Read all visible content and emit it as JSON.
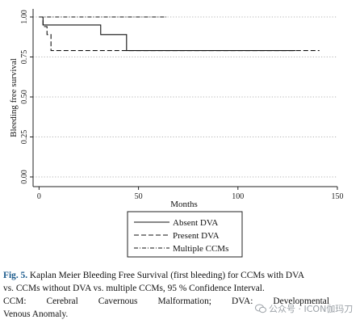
{
  "chart_data": {
    "type": "line",
    "xlabel": "Months",
    "ylabel": "Bleeding free survival",
    "xlim": [
      -3,
      150
    ],
    "ylim": [
      0,
      1.0
    ],
    "xticks": [
      0,
      50,
      100,
      150
    ],
    "yticks": [
      0.0,
      0.25,
      0.5,
      0.75,
      1.0
    ],
    "xtick_labels": [
      "0",
      "50",
      "100",
      "150"
    ],
    "ytick_labels": [
      "0.00",
      "0.25",
      "0.50",
      "0.75",
      "1.00"
    ],
    "grid": "horizontal dotted",
    "legend_position": "below",
    "series": [
      {
        "name": "Absent DVA",
        "style": "solid",
        "steps": [
          [
            0,
            1.0
          ],
          [
            2,
            0.95
          ],
          [
            31,
            0.89
          ],
          [
            44,
            0.79
          ],
          [
            129,
            0.79
          ]
        ]
      },
      {
        "name": "Present DVA",
        "style": "dashed",
        "steps": [
          [
            0,
            1.0
          ],
          [
            2,
            0.94
          ],
          [
            4,
            0.89
          ],
          [
            6,
            0.79
          ],
          [
            141,
            0.79
          ]
        ]
      },
      {
        "name": "Multiple CCMs",
        "style": "dashdot",
        "steps": [
          [
            0,
            1.0
          ],
          [
            64,
            1.0
          ]
        ]
      }
    ]
  },
  "caption": {
    "figure_label": "Fig. 5.",
    "title_line1": " Kaplan Meier Bleeding Free Survival (first bleeding) for CCMs with DVA",
    "title_line2": "vs. CCMs without DVA vs. multiple CCMs, 95 % Confidence Interval.",
    "abbrev_line1": "CCM: Cerebral Cavernous Malformation; DVA: Developmental",
    "abbrev_line2": "Venous Anomaly."
  },
  "watermark": {
    "text": "公众号 · ICON伽玛刀",
    "color": "#9aa0a6"
  }
}
